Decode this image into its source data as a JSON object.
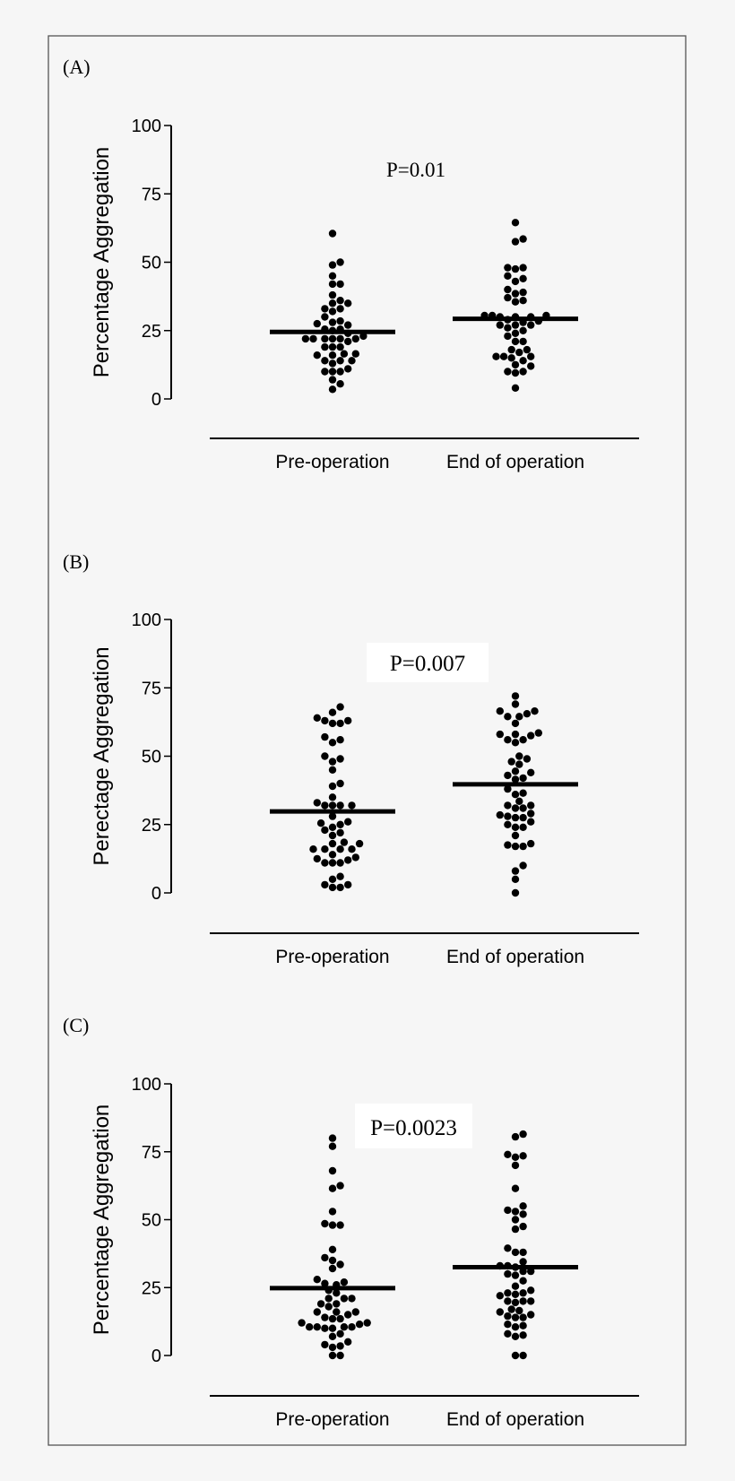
{
  "chart_data": [
    {
      "type": "scatter",
      "panel_label": "(A)",
      "ylabel": "Percentage Aggregation",
      "ylim": [
        0,
        100
      ],
      "yticks": [
        "0",
        "25",
        "50",
        "75",
        "100"
      ],
      "categories": [
        "Pre-operation",
        "End of operation"
      ],
      "annotation": "P=0.01",
      "annotation_boxed": false,
      "series": [
        {
          "category": "Pre-operation",
          "median": 24.5,
          "values": [
            60.5,
            50,
            49,
            45,
            42,
            42,
            38,
            36,
            35,
            35,
            33,
            32,
            33,
            30,
            28,
            27,
            27.5,
            28.5,
            25.5,
            25,
            25.5,
            24,
            23,
            22,
            22,
            22,
            22,
            22,
            21,
            22,
            19,
            19,
            19,
            16.5,
            16,
            16,
            16.5,
            14,
            14,
            14,
            13,
            11,
            10,
            10,
            10,
            7,
            5.5,
            3.5
          ]
        },
        {
          "category": "End of operation",
          "median": 29.3,
          "values": [
            64.5,
            58.5,
            57.5,
            48,
            48,
            47.5,
            45,
            44,
            43,
            40,
            39,
            38.5,
            37,
            36,
            35.5,
            30.5,
            30,
            30,
            30,
            30.5,
            30.5,
            29,
            28.5,
            28,
            27,
            27,
            27,
            26,
            25,
            24,
            23,
            21,
            21,
            18,
            18,
            17,
            15.5,
            15.5,
            15,
            15.5,
            14,
            12,
            12.5,
            10,
            9.5,
            10,
            4
          ]
        }
      ]
    },
    {
      "type": "scatter",
      "panel_label": "(B)",
      "ylabel": "Perectage Aggregation",
      "ylim": [
        0,
        100
      ],
      "yticks": [
        "0",
        "25",
        "50",
        "75",
        "100"
      ],
      "categories": [
        "Pre-operation",
        "End of operation"
      ],
      "annotation": "P=0.007",
      "annotation_boxed": true,
      "series": [
        {
          "category": "Pre-operation",
          "median": 29.8,
          "values": [
            68,
            66,
            64,
            63,
            62,
            62,
            63,
            57,
            56,
            55,
            50,
            49,
            48,
            45,
            40,
            39,
            35,
            33,
            32,
            32,
            32,
            32,
            28,
            26,
            25.5,
            25,
            24,
            23,
            22,
            21,
            18,
            18,
            18.5,
            16,
            16,
            16,
            16,
            14,
            13,
            12.5,
            12,
            11,
            11,
            11,
            5,
            6,
            3,
            2,
            2,
            3
          ]
        },
        {
          "category": "End of operation",
          "median": 39.7,
          "values": [
            72,
            69,
            66.5,
            64.5,
            64.5,
            65.5,
            66.5,
            62,
            58,
            58,
            58.5,
            56,
            55,
            56,
            57.5,
            49,
            47,
            48,
            50,
            44,
            43,
            42,
            41.5,
            44.5,
            38,
            36,
            36.5,
            33.5,
            32,
            31,
            29,
            31,
            32,
            28,
            27.5,
            28.5,
            27.5,
            26,
            25,
            24,
            24,
            21,
            18,
            17,
            17,
            17.5,
            10,
            8,
            5,
            0
          ]
        }
      ]
    },
    {
      "type": "scatter",
      "panel_label": "(C)",
      "ylabel": "Percentage Aggregation",
      "ylim": [
        0,
        100
      ],
      "yticks": [
        "0",
        "25",
        "50",
        "75",
        "100"
      ],
      "categories": [
        "Pre-operation",
        "End of operation"
      ],
      "annotation": "P=0.0023",
      "annotation_boxed": true,
      "series": [
        {
          "category": "Pre-operation",
          "median": 24.8,
          "values": [
            80,
            77,
            68,
            62.5,
            61.5,
            53,
            48,
            48,
            48.5,
            39,
            36,
            35,
            33.5,
            32,
            28,
            26.5,
            26,
            27,
            24,
            23,
            21,
            21,
            21,
            19,
            19,
            18,
            16,
            16,
            16,
            15,
            13.5,
            13.5,
            14,
            12,
            12,
            11.5,
            10.5,
            10.5,
            10.5,
            10,
            10,
            10.5,
            8,
            7,
            5,
            4,
            3,
            3.5,
            0,
            0
          ]
        },
        {
          "category": "End of operation",
          "median": 32.5,
          "values": [
            81.5,
            80.5,
            74,
            73,
            73.5,
            70,
            61.5,
            55,
            53,
            53.5,
            52,
            50,
            47.5,
            46.5,
            39.5,
            38,
            38,
            34.5,
            33,
            33,
            32.5,
            31,
            30,
            31,
            29.5,
            27.5,
            25.5,
            24,
            23,
            22.5,
            22,
            23,
            20,
            19.5,
            20,
            20,
            17,
            16,
            16.5,
            15,
            14,
            14,
            14.5,
            11.5,
            10.5,
            11,
            7.5,
            8,
            7,
            0,
            0
          ]
        }
      ]
    }
  ],
  "colors": {
    "background": "#f6f6f6",
    "ink": "#000000",
    "frame": "#555555",
    "annotation_box": "#ffffff"
  }
}
